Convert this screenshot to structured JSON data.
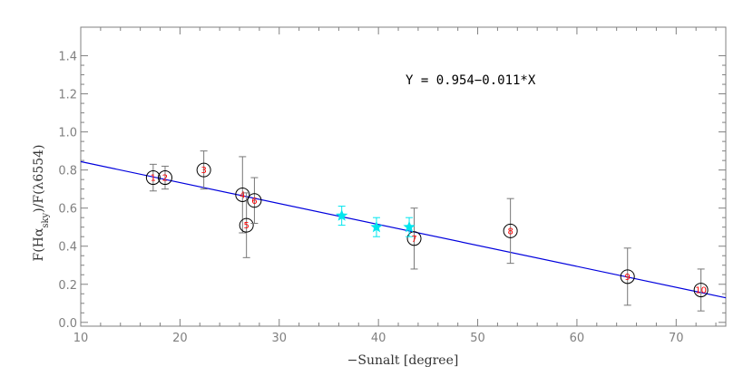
{
  "chart_data": {
    "type": "scatter",
    "title": "",
    "xlabel": "−Sunalt [degree]",
    "ylabel": "F(Hα_sky)/F(λ6554)",
    "xlim": [
      10,
      75
    ],
    "ylim": [
      -0.02,
      1.55
    ],
    "xticks": [
      10,
      20,
      30,
      40,
      50,
      60,
      70
    ],
    "yticks": [
      0.0,
      0.2,
      0.4,
      0.6,
      0.8,
      1.0,
      1.2,
      1.4
    ],
    "xtick_labels": [
      "10",
      "20",
      "30",
      "40",
      "50",
      "60",
      "70"
    ],
    "ytick_labels": [
      "0.0",
      "0.2",
      "0.4",
      "0.6",
      "0.8",
      "1.0",
      "1.2",
      "1.4"
    ],
    "grid": false,
    "fit": {
      "intercept": 0.954,
      "slope": -0.011,
      "label": "Y = 0.954−0.011*X",
      "color": "#0000dd"
    },
    "series": [
      {
        "marker": "circle",
        "color": "#000000",
        "label_color": "#ff0000",
        "points": [
          {
            "label": "1",
            "x": 17.3,
            "y": 0.76,
            "err": 0.07
          },
          {
            "label": "2",
            "x": 18.5,
            "y": 0.76,
            "err": 0.06
          },
          {
            "label": "3",
            "x": 22.4,
            "y": 0.8,
            "err": 0.1
          },
          {
            "label": "4",
            "x": 26.3,
            "y": 0.67,
            "err": 0.2
          },
          {
            "label": "5",
            "x": 26.7,
            "y": 0.51,
            "err": 0.17
          },
          {
            "label": "6",
            "x": 27.5,
            "y": 0.64,
            "err": 0.12
          },
          {
            "label": "7",
            "x": 43.6,
            "y": 0.44,
            "err": 0.16
          },
          {
            "label": "8",
            "x": 53.3,
            "y": 0.48,
            "err": 0.17
          },
          {
            "label": "9",
            "x": 65.1,
            "y": 0.24,
            "err": 0.15
          },
          {
            "label": "10",
            "x": 72.5,
            "y": 0.17,
            "err": 0.11
          }
        ]
      },
      {
        "marker": "star",
        "color": "#00e5ee",
        "points": [
          {
            "x": 36.3,
            "y": 0.56,
            "err": 0.05
          },
          {
            "x": 39.8,
            "y": 0.5,
            "err": 0.05
          },
          {
            "x": 43.1,
            "y": 0.5,
            "err": 0.05
          }
        ]
      }
    ]
  }
}
